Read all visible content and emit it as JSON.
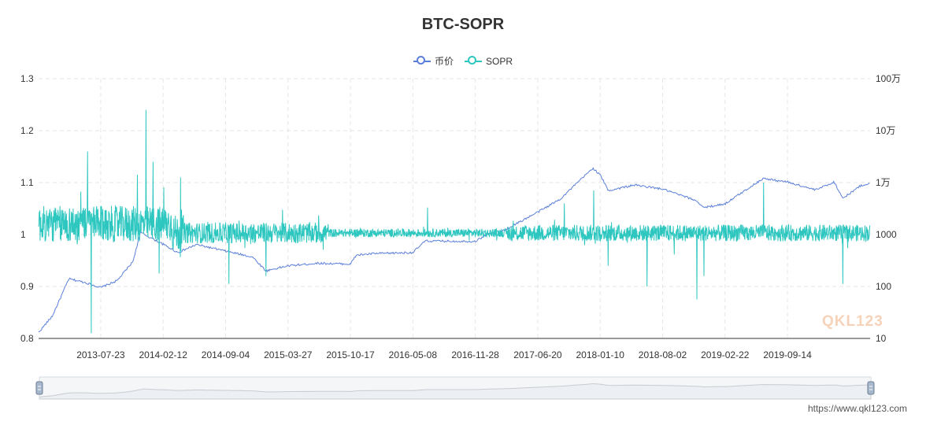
{
  "chart_data": {
    "type": "line",
    "title": "BTC-SOPR",
    "legend_position": "top",
    "series": [
      {
        "name": "币价",
        "color": "#5b7fd9",
        "axis": "right",
        "scale": "log",
        "points": [
          [
            "2013-01-01",
            13
          ],
          [
            "2013-02-15",
            27
          ],
          [
            "2013-04-10",
            140
          ],
          [
            "2013-06-01",
            120
          ],
          [
            "2013-07-23",
            95
          ],
          [
            "2013-09-15",
            130
          ],
          [
            "2013-11-05",
            300
          ],
          [
            "2013-11-30",
            1100
          ],
          [
            "2014-01-05",
            850
          ],
          [
            "2014-02-12",
            650
          ],
          [
            "2014-04-01",
            450
          ],
          [
            "2014-06-01",
            640
          ],
          [
            "2014-09-04",
            480
          ],
          [
            "2014-12-01",
            370
          ],
          [
            "2015-01-14",
            200
          ],
          [
            "2015-03-27",
            250
          ],
          [
            "2015-07-01",
            280
          ],
          [
            "2015-10-17",
            270
          ],
          [
            "2015-11-05",
            400
          ],
          [
            "2016-01-01",
            430
          ],
          [
            "2016-05-08",
            450
          ],
          [
            "2016-06-17",
            750
          ],
          [
            "2016-11-28",
            740
          ],
          [
            "2017-01-05",
            1000
          ],
          [
            "2017-03-01",
            1200
          ],
          [
            "2017-06-20",
            2700
          ],
          [
            "2017-09-01",
            4800
          ],
          [
            "2017-12-17",
            19000
          ],
          [
            "2018-01-10",
            14000
          ],
          [
            "2018-02-06",
            7000
          ],
          [
            "2018-05-01",
            9000
          ],
          [
            "2018-08-02",
            7500
          ],
          [
            "2018-11-20",
            4500
          ],
          [
            "2018-12-15",
            3300
          ],
          [
            "2019-02-22",
            3900
          ],
          [
            "2019-06-26",
            12000
          ],
          [
            "2019-09-14",
            10300
          ],
          [
            "2019-12-15",
            7200
          ],
          [
            "2020-02-13",
            10300
          ],
          [
            "2020-03-13",
            5000
          ],
          [
            "2020-05-10",
            8700
          ],
          [
            "2020-06-10",
            9800
          ]
        ]
      },
      {
        "name": "SOPR",
        "color": "#2ec7c0",
        "axis": "left",
        "start_date": "2013-01-01",
        "end_date": "2020-06-10"
      }
    ],
    "x_axis": {
      "type": "date",
      "tick_labels": [
        "2013-07-23",
        "2014-02-12",
        "2014-09-04",
        "2015-03-27",
        "2015-10-17",
        "2016-05-08",
        "2016-11-28",
        "2017-06-20",
        "2018-01-10",
        "2018-08-02",
        "2019-02-22",
        "2019-09-14"
      ]
    },
    "y_axis_left": {
      "min": 0.8,
      "max": 1.3,
      "tick_labels": [
        "0.8",
        "0.9",
        "1",
        "1.1",
        "1.2",
        "1.3"
      ]
    },
    "y_axis_right": {
      "scale": "log",
      "min": 10,
      "max": 1000000,
      "tick_labels": [
        "10",
        "100",
        "1000",
        "1万",
        "10万",
        "100万"
      ]
    },
    "grid": true
  },
  "footer": {
    "url": "https://www.qkl123.com",
    "watermark": "QKL123"
  }
}
